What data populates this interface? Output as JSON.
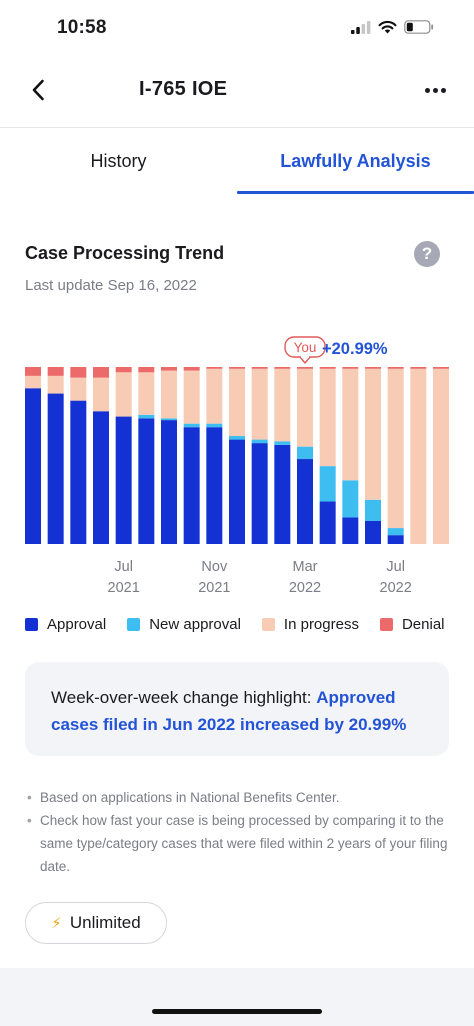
{
  "status_bar": {
    "time": "10:58"
  },
  "nav": {
    "title": "I-765  IOE",
    "title_trailing_masked": ""
  },
  "tabs": [
    {
      "label": "History",
      "active": false
    },
    {
      "label": "Lawfully Analysis",
      "active": true
    }
  ],
  "section": {
    "title": "Case Processing Trend",
    "last_update": "Last update Sep 16, 2022"
  },
  "chart_data": {
    "type": "bar",
    "stacked": true,
    "stack_unit": "share of cases (%)",
    "categories": [
      "2021-03",
      "2021-04",
      "2021-05",
      "2021-06",
      "2021-07",
      "2021-08",
      "2021-09",
      "2021-10",
      "2021-11",
      "2021-12",
      "2022-01",
      "2022-02",
      "2022-03",
      "2022-04",
      "2022-05",
      "2022-06",
      "2022-07",
      "2022-08",
      "2022-09"
    ],
    "tick_labels": [
      {
        "category": "2021-07",
        "line1": "Jul",
        "line2": "2021"
      },
      {
        "category": "2021-11",
        "line1": "Nov",
        "line2": "2021"
      },
      {
        "category": "2022-03",
        "line1": "Mar",
        "line2": "2022"
      },
      {
        "category": "2022-07",
        "line1": "Jul",
        "line2": "2022"
      }
    ],
    "series": [
      {
        "name": "Approval",
        "color": "#1432d4",
        "values": [
          88,
          85,
          81,
          75,
          72,
          71,
          70,
          66,
          66,
          59,
          57,
          56,
          48,
          24,
          15,
          13,
          5,
          0,
          0
        ]
      },
      {
        "name": "New approval",
        "color": "#3dbdf0",
        "values": [
          0,
          0,
          0,
          0,
          0,
          2,
          1,
          2,
          2,
          2,
          2,
          2,
          7,
          20,
          21,
          12,
          4,
          0,
          0
        ]
      },
      {
        "name": "In progress",
        "color": "#f8cbb4",
        "values": [
          7,
          10,
          13,
          19,
          25,
          24,
          27,
          30,
          31,
          38,
          40,
          41,
          44,
          55,
          63,
          74,
          90,
          99,
          99
        ]
      },
      {
        "name": "Denial",
        "color": "#ed6a6a",
        "values": [
          5,
          5,
          6,
          6,
          3,
          3,
          2,
          2,
          1,
          1,
          1,
          1,
          1,
          1,
          1,
          1,
          1,
          1,
          1
        ]
      }
    ],
    "annotation": {
      "category": "2022-03",
      "label": "You",
      "change_text": "+20.99%"
    },
    "ylim": [
      0,
      100
    ],
    "grid": false,
    "legend": "bottom"
  },
  "legend": [
    {
      "label": "Approval",
      "color": "#1432d4"
    },
    {
      "label": "New approval",
      "color": "#3dbdf0"
    },
    {
      "label": "In progress",
      "color": "#f8cbb4"
    },
    {
      "label": "Denial",
      "color": "#ed6a6a"
    }
  ],
  "highlight": {
    "prefix": "Week-over-week change highlight: ",
    "accent": "Approved cases filed in Jun 2022 increased by 20.99%"
  },
  "notes": [
    "Based on applications in National Benefits Center.",
    "Check how fast your case is being processed by comparing it to the same type/category cases that were filed within 2 years of your filing date."
  ],
  "unlimited_button": {
    "label": "Unlimited",
    "icon": "lightning-bolt-icon"
  },
  "colors": {
    "accent": "#2354d6"
  }
}
